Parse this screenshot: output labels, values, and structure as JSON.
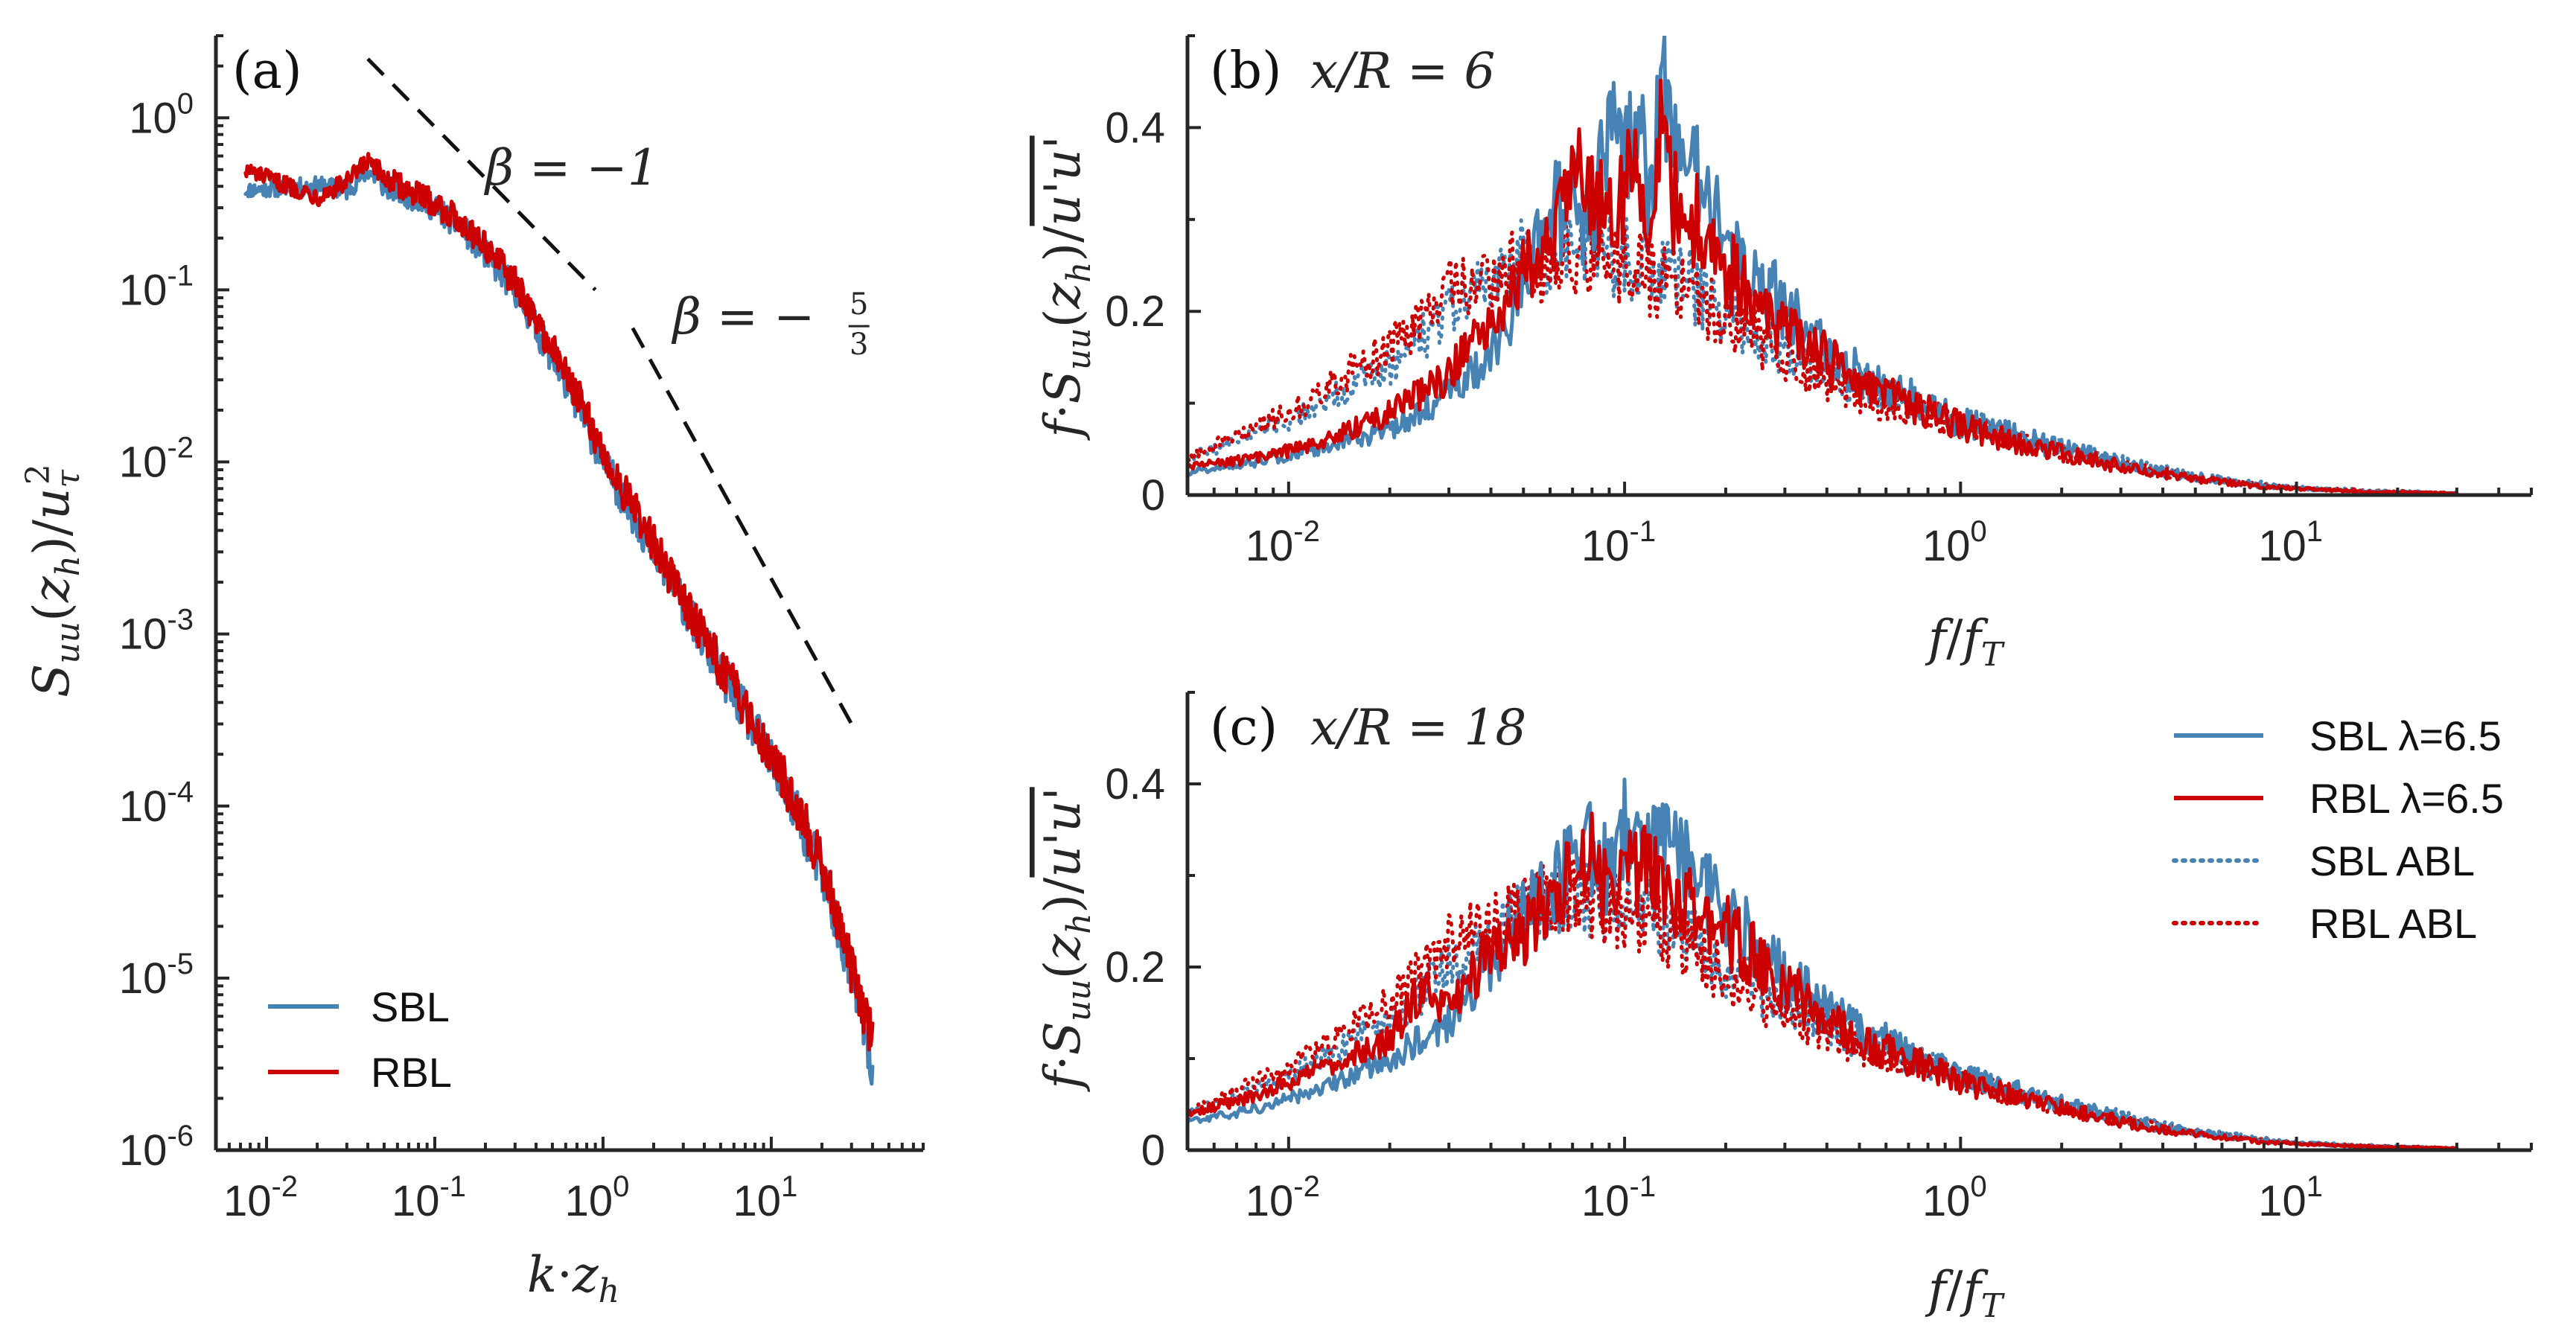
{
  "figure": {
    "colors": {
      "sbl": "#4682B4",
      "rbl": "#CC0000",
      "axis": "#262626"
    }
  },
  "chart_data": [
    {
      "id": "a",
      "type": "line",
      "scale": "log-log",
      "panel_label": "(a)",
      "title": "",
      "xlabel": "k·z_h",
      "ylabel": "S_uu(z_h)/u_τ²",
      "xlim": [
        0.005,
        80
      ],
      "ylim": [
        1e-06,
        3
      ],
      "x_ticks": [
        {
          "value": 0.01,
          "base": "10",
          "exp": "-2"
        },
        {
          "value": 0.1,
          "base": "10",
          "exp": "-1"
        },
        {
          "value": 1,
          "base": "10",
          "exp": "0"
        },
        {
          "value": 10,
          "base": "10",
          "exp": "1"
        }
      ],
      "y_ticks": [
        {
          "value": 1,
          "base": "10",
          "exp": "0"
        },
        {
          "value": 0.1,
          "base": "10",
          "exp": "-1"
        },
        {
          "value": 0.01,
          "base": "10",
          "exp": "-2"
        },
        {
          "value": 0.001,
          "base": "10",
          "exp": "-3"
        },
        {
          "value": 0.0001,
          "base": "10",
          "exp": "-4"
        },
        {
          "value": 1e-05,
          "base": "10",
          "exp": "-5"
        },
        {
          "value": 1e-06,
          "base": "10",
          "exp": "-6"
        }
      ],
      "series": [
        {
          "name": "SBL",
          "color": "#4682B4",
          "x": [
            0.0075,
            0.012,
            0.02,
            0.03,
            0.04,
            0.05,
            0.07,
            0.1,
            0.15,
            0.2,
            0.3,
            0.5,
            0.7,
            1,
            1.5,
            2,
            3,
            5,
            7,
            10,
            15,
            20,
            25,
            30,
            35,
            40
          ],
          "y": [
            0.38,
            0.39,
            0.4,
            0.38,
            0.5,
            0.4,
            0.35,
            0.3,
            0.22,
            0.16,
            0.1,
            0.04,
            0.022,
            0.01,
            0.005,
            0.003,
            0.0015,
            0.0006,
            0.00035,
            0.00018,
            8e-05,
            4e-05,
            2e-05,
            1e-05,
            6e-06,
            2.5e-06
          ]
        },
        {
          "name": "RBL",
          "color": "#CC0000",
          "x": [
            0.0075,
            0.012,
            0.02,
            0.03,
            0.04,
            0.05,
            0.07,
            0.1,
            0.15,
            0.2,
            0.3,
            0.5,
            0.7,
            1,
            1.5,
            2,
            3,
            5,
            7,
            10,
            15,
            20,
            25,
            30,
            35,
            40
          ],
          "y": [
            0.5,
            0.42,
            0.35,
            0.42,
            0.55,
            0.45,
            0.38,
            0.32,
            0.24,
            0.18,
            0.11,
            0.045,
            0.025,
            0.011,
            0.0055,
            0.0033,
            0.0016,
            0.00065,
            0.00038,
            0.0002,
            9e-05,
            4.5e-05,
            2.2e-05,
            1.1e-05,
            7e-06,
            4e-06
          ]
        }
      ],
      "reference_lines": [
        {
          "name": "beta=-1",
          "label": "β = −1",
          "x": [
            0.04,
            0.9
          ],
          "y": [
            2.2,
            0.1
          ],
          "label_at": [
            0.2,
            0.5
          ]
        },
        {
          "name": "beta=-5/3",
          "label_prefix": "β = −",
          "label_num": "5",
          "label_den": "3",
          "x": [
            1.5,
            30
          ],
          "y": [
            0.06,
            0.0003
          ],
          "label_at": [
            2.6,
            0.068
          ]
        }
      ],
      "legend": {
        "position": "bottom-left",
        "entries": [
          "SBL",
          "RBL"
        ]
      }
    },
    {
      "id": "b",
      "type": "line",
      "scale": "semilog-x",
      "panel_label": "(b)",
      "title": "x/R = 6",
      "xlabel": "f/f_T",
      "ylabel": "f·S_uu(z_h)/u'u'",
      "xlim": [
        0.005,
        50
      ],
      "ylim": [
        0,
        0.5
      ],
      "x_ticks": [
        {
          "value": 0.01,
          "base": "10",
          "exp": "-2"
        },
        {
          "value": 0.1,
          "base": "10",
          "exp": "-1"
        },
        {
          "value": 1,
          "base": "10",
          "exp": "0"
        },
        {
          "value": 10,
          "base": "10",
          "exp": "1"
        }
      ],
      "y_ticks": [
        {
          "value": 0,
          "label": "0"
        },
        {
          "value": 0.2,
          "label": "0.2"
        },
        {
          "value": 0.4,
          "label": "0.4"
        }
      ],
      "series": [
        {
          "name": "SBL λ=6.5",
          "color": "#4682B4",
          "style": "solid",
          "x": [
            0.005,
            0.008,
            0.012,
            0.02,
            0.03,
            0.04,
            0.05,
            0.06,
            0.07,
            0.08,
            0.09,
            0.1,
            0.11,
            0.12,
            0.13,
            0.14,
            0.16,
            0.2,
            0.3,
            0.5,
            1,
            2,
            4,
            8,
            15,
            30
          ],
          "y": [
            0.025,
            0.035,
            0.05,
            0.07,
            0.11,
            0.15,
            0.22,
            0.32,
            0.3,
            0.28,
            0.42,
            0.36,
            0.4,
            0.33,
            0.47,
            0.38,
            0.35,
            0.28,
            0.2,
            0.13,
            0.08,
            0.05,
            0.025,
            0.01,
            0.004,
            0.002
          ]
        },
        {
          "name": "RBL λ=6.5",
          "color": "#CC0000",
          "style": "solid",
          "x": [
            0.005,
            0.008,
            0.012,
            0.02,
            0.03,
            0.04,
            0.05,
            0.06,
            0.07,
            0.08,
            0.09,
            0.1,
            0.11,
            0.12,
            0.13,
            0.14,
            0.16,
            0.2,
            0.3,
            0.5,
            1,
            2,
            4,
            8,
            15,
            30
          ],
          "y": [
            0.03,
            0.04,
            0.055,
            0.09,
            0.13,
            0.2,
            0.24,
            0.27,
            0.36,
            0.33,
            0.29,
            0.33,
            0.36,
            0.3,
            0.42,
            0.32,
            0.3,
            0.25,
            0.18,
            0.12,
            0.075,
            0.045,
            0.022,
            0.009,
            0.004,
            0.002
          ]
        },
        {
          "name": "SBL ABL",
          "color": "#4682B4",
          "style": "dotted",
          "x": [
            0.005,
            0.01,
            0.02,
            0.03,
            0.05,
            0.07,
            0.1,
            0.15,
            0.2,
            0.3,
            0.5,
            1,
            2,
            5,
            10,
            30
          ],
          "y": [
            0.04,
            0.08,
            0.14,
            0.2,
            0.26,
            0.27,
            0.26,
            0.23,
            0.2,
            0.16,
            0.12,
            0.08,
            0.05,
            0.02,
            0.008,
            0.002
          ]
        },
        {
          "name": "RBL ABL",
          "color": "#CC0000",
          "style": "dotted",
          "x": [
            0.005,
            0.01,
            0.02,
            0.03,
            0.05,
            0.07,
            0.1,
            0.15,
            0.2,
            0.3,
            0.5,
            1,
            2,
            5,
            10,
            30
          ],
          "y": [
            0.04,
            0.09,
            0.16,
            0.22,
            0.25,
            0.26,
            0.25,
            0.22,
            0.19,
            0.15,
            0.11,
            0.075,
            0.045,
            0.018,
            0.007,
            0.002
          ]
        }
      ]
    },
    {
      "id": "c",
      "type": "line",
      "scale": "semilog-x",
      "panel_label": "(c)",
      "title": "x/R = 18",
      "xlabel": "f/f_T",
      "ylabel": "f·S_uu(z_h)/u'u'",
      "xlim": [
        0.005,
        50
      ],
      "ylim": [
        0,
        0.5
      ],
      "x_ticks": [
        {
          "value": 0.01,
          "base": "10",
          "exp": "-2"
        },
        {
          "value": 0.1,
          "base": "10",
          "exp": "-1"
        },
        {
          "value": 1,
          "base": "10",
          "exp": "0"
        },
        {
          "value": 10,
          "base": "10",
          "exp": "1"
        }
      ],
      "y_ticks": [
        {
          "value": 0,
          "label": "0"
        },
        {
          "value": 0.2,
          "label": "0.2"
        },
        {
          "value": 0.4,
          "label": "0.4"
        }
      ],
      "series": [
        {
          "name": "SBL λ=6.5",
          "color": "#4682B4",
          "style": "solid",
          "x": [
            0.005,
            0.008,
            0.012,
            0.02,
            0.03,
            0.04,
            0.05,
            0.06,
            0.07,
            0.08,
            0.09,
            0.1,
            0.11,
            0.12,
            0.14,
            0.16,
            0.2,
            0.3,
            0.5,
            1,
            2,
            4,
            8,
            15,
            30
          ],
          "y": [
            0.03,
            0.045,
            0.065,
            0.1,
            0.14,
            0.2,
            0.27,
            0.29,
            0.31,
            0.33,
            0.3,
            0.36,
            0.32,
            0.34,
            0.33,
            0.3,
            0.26,
            0.19,
            0.13,
            0.08,
            0.05,
            0.025,
            0.01,
            0.004,
            0.002
          ]
        },
        {
          "name": "RBL λ=6.5",
          "color": "#CC0000",
          "style": "solid",
          "x": [
            0.005,
            0.008,
            0.012,
            0.02,
            0.025,
            0.03,
            0.04,
            0.05,
            0.06,
            0.07,
            0.08,
            0.09,
            0.1,
            0.12,
            0.14,
            0.16,
            0.2,
            0.3,
            0.5,
            1,
            2,
            4,
            8,
            15,
            30
          ],
          "y": [
            0.04,
            0.06,
            0.085,
            0.12,
            0.18,
            0.15,
            0.22,
            0.23,
            0.28,
            0.3,
            0.32,
            0.27,
            0.3,
            0.31,
            0.28,
            0.26,
            0.24,
            0.18,
            0.12,
            0.075,
            0.045,
            0.022,
            0.009,
            0.004,
            0.002
          ]
        },
        {
          "name": "SBL ABL",
          "color": "#4682B4",
          "style": "dotted",
          "x": [
            0.005,
            0.01,
            0.02,
            0.03,
            0.05,
            0.07,
            0.1,
            0.15,
            0.2,
            0.3,
            0.5,
            1,
            2,
            5,
            10,
            30
          ],
          "y": [
            0.04,
            0.08,
            0.14,
            0.2,
            0.26,
            0.28,
            0.27,
            0.24,
            0.2,
            0.16,
            0.12,
            0.08,
            0.05,
            0.02,
            0.008,
            0.002
          ]
        },
        {
          "name": "RBL ABL",
          "color": "#CC0000",
          "style": "dotted",
          "x": [
            0.005,
            0.01,
            0.02,
            0.03,
            0.05,
            0.07,
            0.1,
            0.15,
            0.2,
            0.3,
            0.5,
            1,
            2,
            5,
            10,
            30
          ],
          "y": [
            0.04,
            0.09,
            0.16,
            0.23,
            0.27,
            0.28,
            0.26,
            0.23,
            0.19,
            0.15,
            0.11,
            0.075,
            0.045,
            0.018,
            0.007,
            0.002
          ]
        }
      ],
      "legend": {
        "position": "top-right",
        "entries": [
          "SBL λ=6.5",
          "RBL λ=6.5",
          "SBL ABL",
          "RBL ABL"
        ]
      }
    }
  ]
}
